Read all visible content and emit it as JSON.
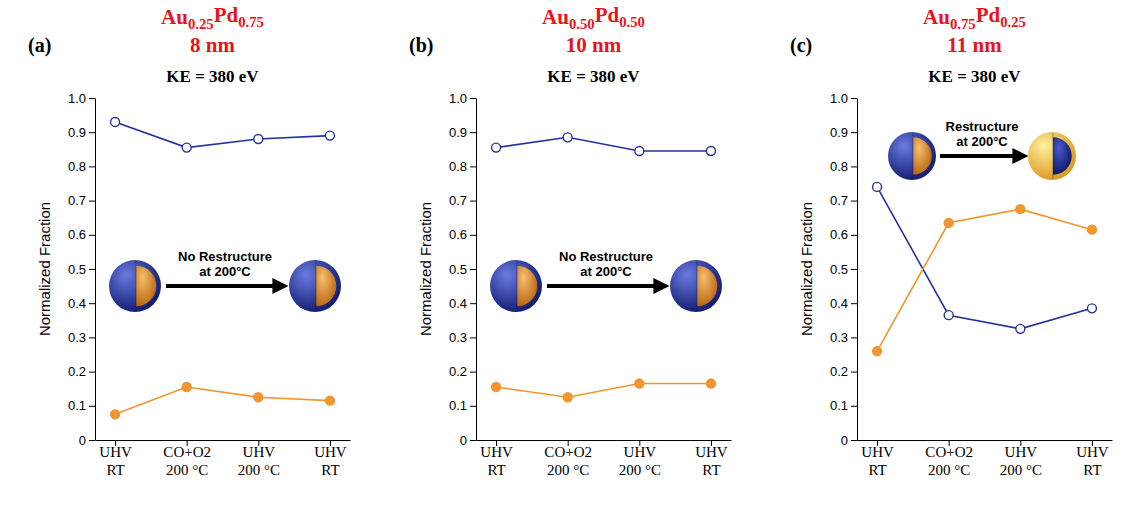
{
  "chart_data": [
    {
      "type": "line",
      "panel": "(a)",
      "title": "Au0.25Pd0.75",
      "subtitle": "8 nm",
      "note": "KE = 380 eV",
      "y_label": "Normalized Fraction",
      "annotation": "No Restructure\nat 200°C",
      "categories": [
        "UHV\nRT",
        "CO+O2\n200 °C",
        "UHV\n200 °C",
        "UHV\nRT"
      ],
      "series": [
        {
          "color": "#24339b",
          "marker": "open_circle",
          "line_style": "solid",
          "values": [
            0.93,
            0.855,
            0.88,
            0.89
          ]
        },
        {
          "color": "#f0962f",
          "marker": "circle",
          "line_style": "solid",
          "values": [
            0.075,
            0.155,
            0.125,
            0.115
          ]
        }
      ],
      "ylim": [
        0,
        1
      ],
      "yticks": [
        0,
        0.1,
        0.2,
        0.3,
        0.4,
        0.5,
        0.6,
        0.7,
        0.8,
        0.9,
        {
          "value": 1,
          "label": "1.0"
        }
      ],
      "grid": false
    },
    {
      "type": "line",
      "panel": "(b)",
      "title": "Au0.50Pd0.50",
      "subtitle": "10 nm",
      "note": "KE = 380 eV",
      "y_label": "Normalized Fraction",
      "annotation": "No Restructure\nat 200°C",
      "categories": [
        "UHV\nRT",
        "CO+O2\n200 °C",
        "UHV\n200 °C",
        "UHV\nRT"
      ],
      "series": [
        {
          "color": "#24339b",
          "marker": "open_circle",
          "line_style": "solid",
          "values": [
            0.855,
            0.885,
            0.845,
            0.845
          ]
        },
        {
          "color": "#f0962f",
          "marker": "circle",
          "line_style": "solid",
          "values": [
            0.155,
            0.125,
            0.165,
            0.165
          ]
        }
      ],
      "ylim": [
        0,
        1
      ],
      "yticks": [
        0,
        0.1,
        0.2,
        0.3,
        0.4,
        0.5,
        0.6,
        0.7,
        0.8,
        0.9,
        {
          "value": 1,
          "label": "1.0"
        }
      ],
      "grid": false
    },
    {
      "type": "line",
      "panel": "(c)",
      "title": "Au0.75Pd0.25",
      "subtitle": "11 nm",
      "note": "KE = 380 eV",
      "y_label": "Normalized Fraction",
      "annotation": "Restructure\nat 200°C",
      "categories": [
        "UHV\nRT",
        "CO+O2\n200 °C",
        "UHV\n200 °C",
        "UHV\nRT"
      ],
      "series": [
        {
          "color": "#24339b",
          "marker": "open_circle",
          "line_style": "solid",
          "values": [
            0.74,
            0.365,
            0.325,
            0.385
          ]
        },
        {
          "color": "#f0962f",
          "marker": "circle",
          "line_style": "solid",
          "values": [
            0.26,
            0.635,
            0.675,
            0.615
          ]
        }
      ],
      "ylim": [
        0,
        1
      ],
      "yticks": [
        0,
        0.1,
        0.2,
        0.3,
        0.4,
        0.5,
        0.6,
        0.7,
        0.8,
        0.9,
        {
          "value": 1,
          "label": "1.0"
        }
      ],
      "grid": false
    }
  ]
}
